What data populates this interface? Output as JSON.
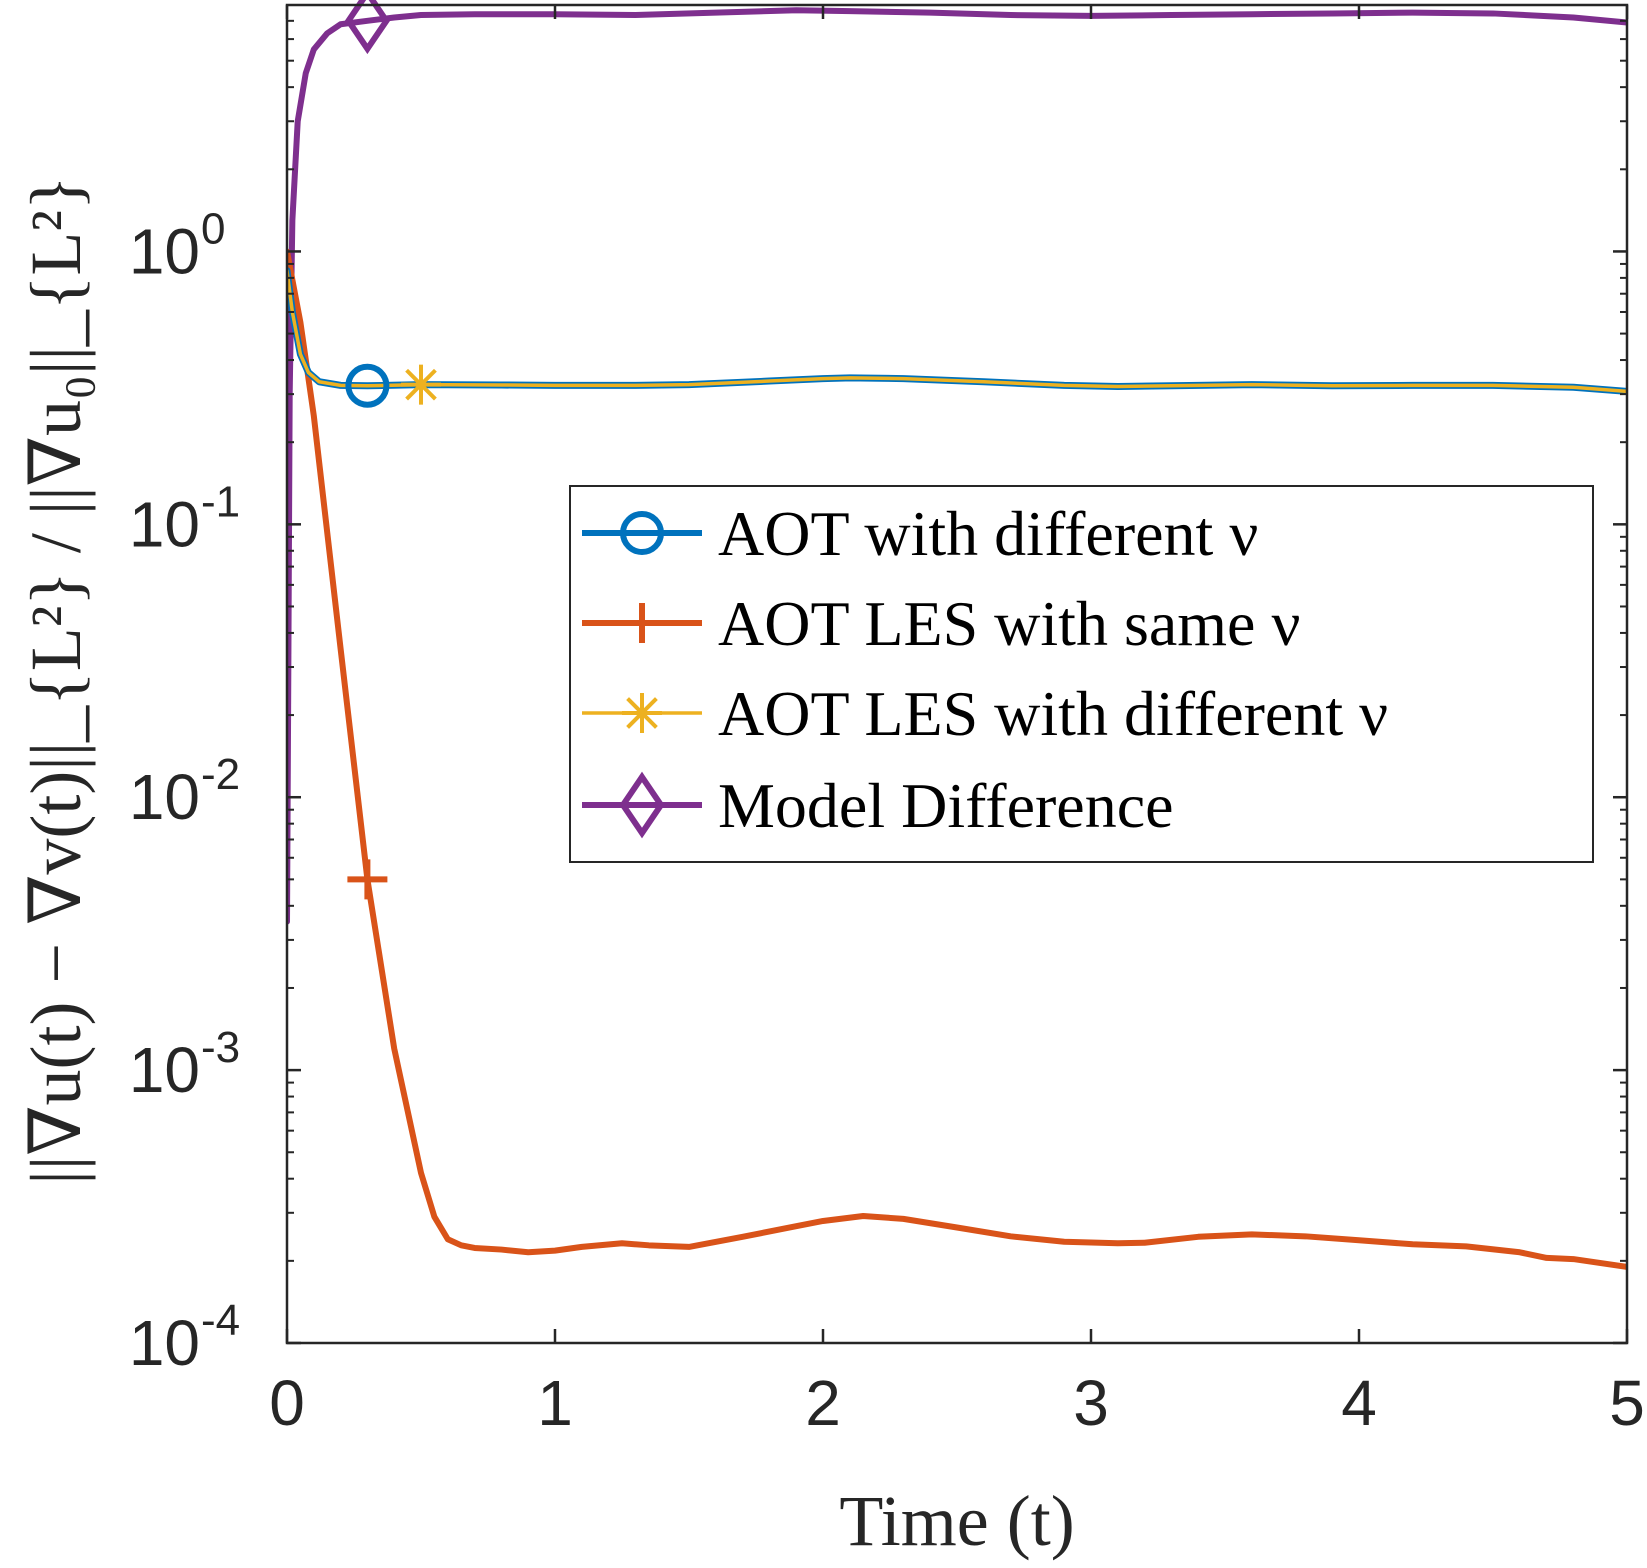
{
  "chart_data": {
    "type": "line",
    "title": "",
    "xlabel": "Time (t)",
    "ylabel": "||∇u(t) − ∇v(t)||_{L²} / ||∇u₀||_{L²}",
    "xlim": [
      0,
      5
    ],
    "ylim": [
      0.0001,
      8
    ],
    "yscale": "log",
    "x_ticks": [
      0,
      1,
      2,
      3,
      4,
      5
    ],
    "x_tick_labels": [
      "0",
      "1",
      "2",
      "3",
      "4",
      "5"
    ],
    "y_ticks": [
      0.0001,
      0.001,
      0.01,
      0.1,
      1
    ],
    "y_tick_labels": [
      {
        "base": "10",
        "exp": "-4"
      },
      {
        "base": "10",
        "exp": "-3"
      },
      {
        "base": "10",
        "exp": "-2"
      },
      {
        "base": "10",
        "exp": "-1"
      },
      {
        "base": "10",
        "exp": "0"
      }
    ],
    "legend_position": "center-right",
    "series": [
      {
        "name": "AOT with different ν",
        "color": "#0072BD",
        "marker": "circle",
        "marker_x": 0.3,
        "x": [
          0,
          0.02,
          0.05,
          0.08,
          0.12,
          0.2,
          0.3,
          0.5,
          0.8,
          1.0,
          1.3,
          1.5,
          1.8,
          2.0,
          2.1,
          2.3,
          2.6,
          2.9,
          3.1,
          3.3,
          3.6,
          3.9,
          4.2,
          4.5,
          4.8,
          5.0
        ],
        "y": [
          0.85,
          0.6,
          0.42,
          0.36,
          0.333,
          0.323,
          0.322,
          0.325,
          0.324,
          0.323,
          0.323,
          0.325,
          0.335,
          0.342,
          0.344,
          0.342,
          0.333,
          0.323,
          0.32,
          0.322,
          0.325,
          0.322,
          0.323,
          0.323,
          0.318,
          0.307
        ]
      },
      {
        "name": "AOT LES with same ν",
        "color": "#D95319",
        "marker": "plus",
        "marker_x": 0.3,
        "x": [
          0,
          0.05,
          0.1,
          0.2,
          0.3,
          0.4,
          0.5,
          0.55,
          0.6,
          0.65,
          0.7,
          0.8,
          0.9,
          1.0,
          1.1,
          1.25,
          1.35,
          1.5,
          1.7,
          1.9,
          2.0,
          2.15,
          2.3,
          2.5,
          2.7,
          2.9,
          3.1,
          3.2,
          3.4,
          3.6,
          3.8,
          4.0,
          4.2,
          4.4,
          4.6,
          4.7,
          4.8,
          5.0
        ],
        "y": [
          1.0,
          0.55,
          0.25,
          0.035,
          0.005,
          0.0012,
          0.00042,
          0.00029,
          0.00024,
          0.000228,
          0.000223,
          0.00022,
          0.000215,
          0.000218,
          0.000225,
          0.000232,
          0.000228,
          0.000225,
          0.000245,
          0.000268,
          0.00028,
          0.000292,
          0.000285,
          0.000265,
          0.000246,
          0.000235,
          0.000232,
          0.000233,
          0.000245,
          0.00025,
          0.000246,
          0.000238,
          0.00023,
          0.000226,
          0.000215,
          0.000205,
          0.000203,
          0.00019
        ]
      },
      {
        "name": "AOT LES with different ν",
        "color": "#EDB120",
        "marker": "asterisk",
        "marker_x": 0.5,
        "x": [
          0,
          0.02,
          0.05,
          0.08,
          0.12,
          0.2,
          0.3,
          0.5,
          0.8,
          1.0,
          1.3,
          1.5,
          1.8,
          2.0,
          2.1,
          2.3,
          2.6,
          2.9,
          3.1,
          3.3,
          3.6,
          3.9,
          4.2,
          4.5,
          4.8,
          5.0
        ],
        "y": [
          0.85,
          0.6,
          0.42,
          0.36,
          0.333,
          0.323,
          0.322,
          0.325,
          0.324,
          0.323,
          0.323,
          0.325,
          0.335,
          0.342,
          0.344,
          0.342,
          0.333,
          0.323,
          0.32,
          0.322,
          0.325,
          0.322,
          0.323,
          0.323,
          0.318,
          0.307
        ]
      },
      {
        "name": "Model Difference",
        "color": "#7E2F8E",
        "marker": "diamond",
        "marker_x": 0.3,
        "x": [
          0,
          0.005,
          0.01,
          0.02,
          0.04,
          0.07,
          0.1,
          0.15,
          0.2,
          0.3,
          0.4,
          0.5,
          0.7,
          1.0,
          1.3,
          1.6,
          1.9,
          2.1,
          2.4,
          2.7,
          3.0,
          3.3,
          3.6,
          3.9,
          4.2,
          4.5,
          4.8,
          5.0
        ],
        "y": [
          0.0035,
          0.03,
          0.3,
          1.3,
          3.0,
          4.5,
          5.5,
          6.3,
          6.8,
          7.0,
          7.2,
          7.35,
          7.4,
          7.4,
          7.35,
          7.5,
          7.65,
          7.6,
          7.5,
          7.35,
          7.3,
          7.35,
          7.4,
          7.45,
          7.5,
          7.45,
          7.2,
          6.9
        ]
      }
    ]
  }
}
